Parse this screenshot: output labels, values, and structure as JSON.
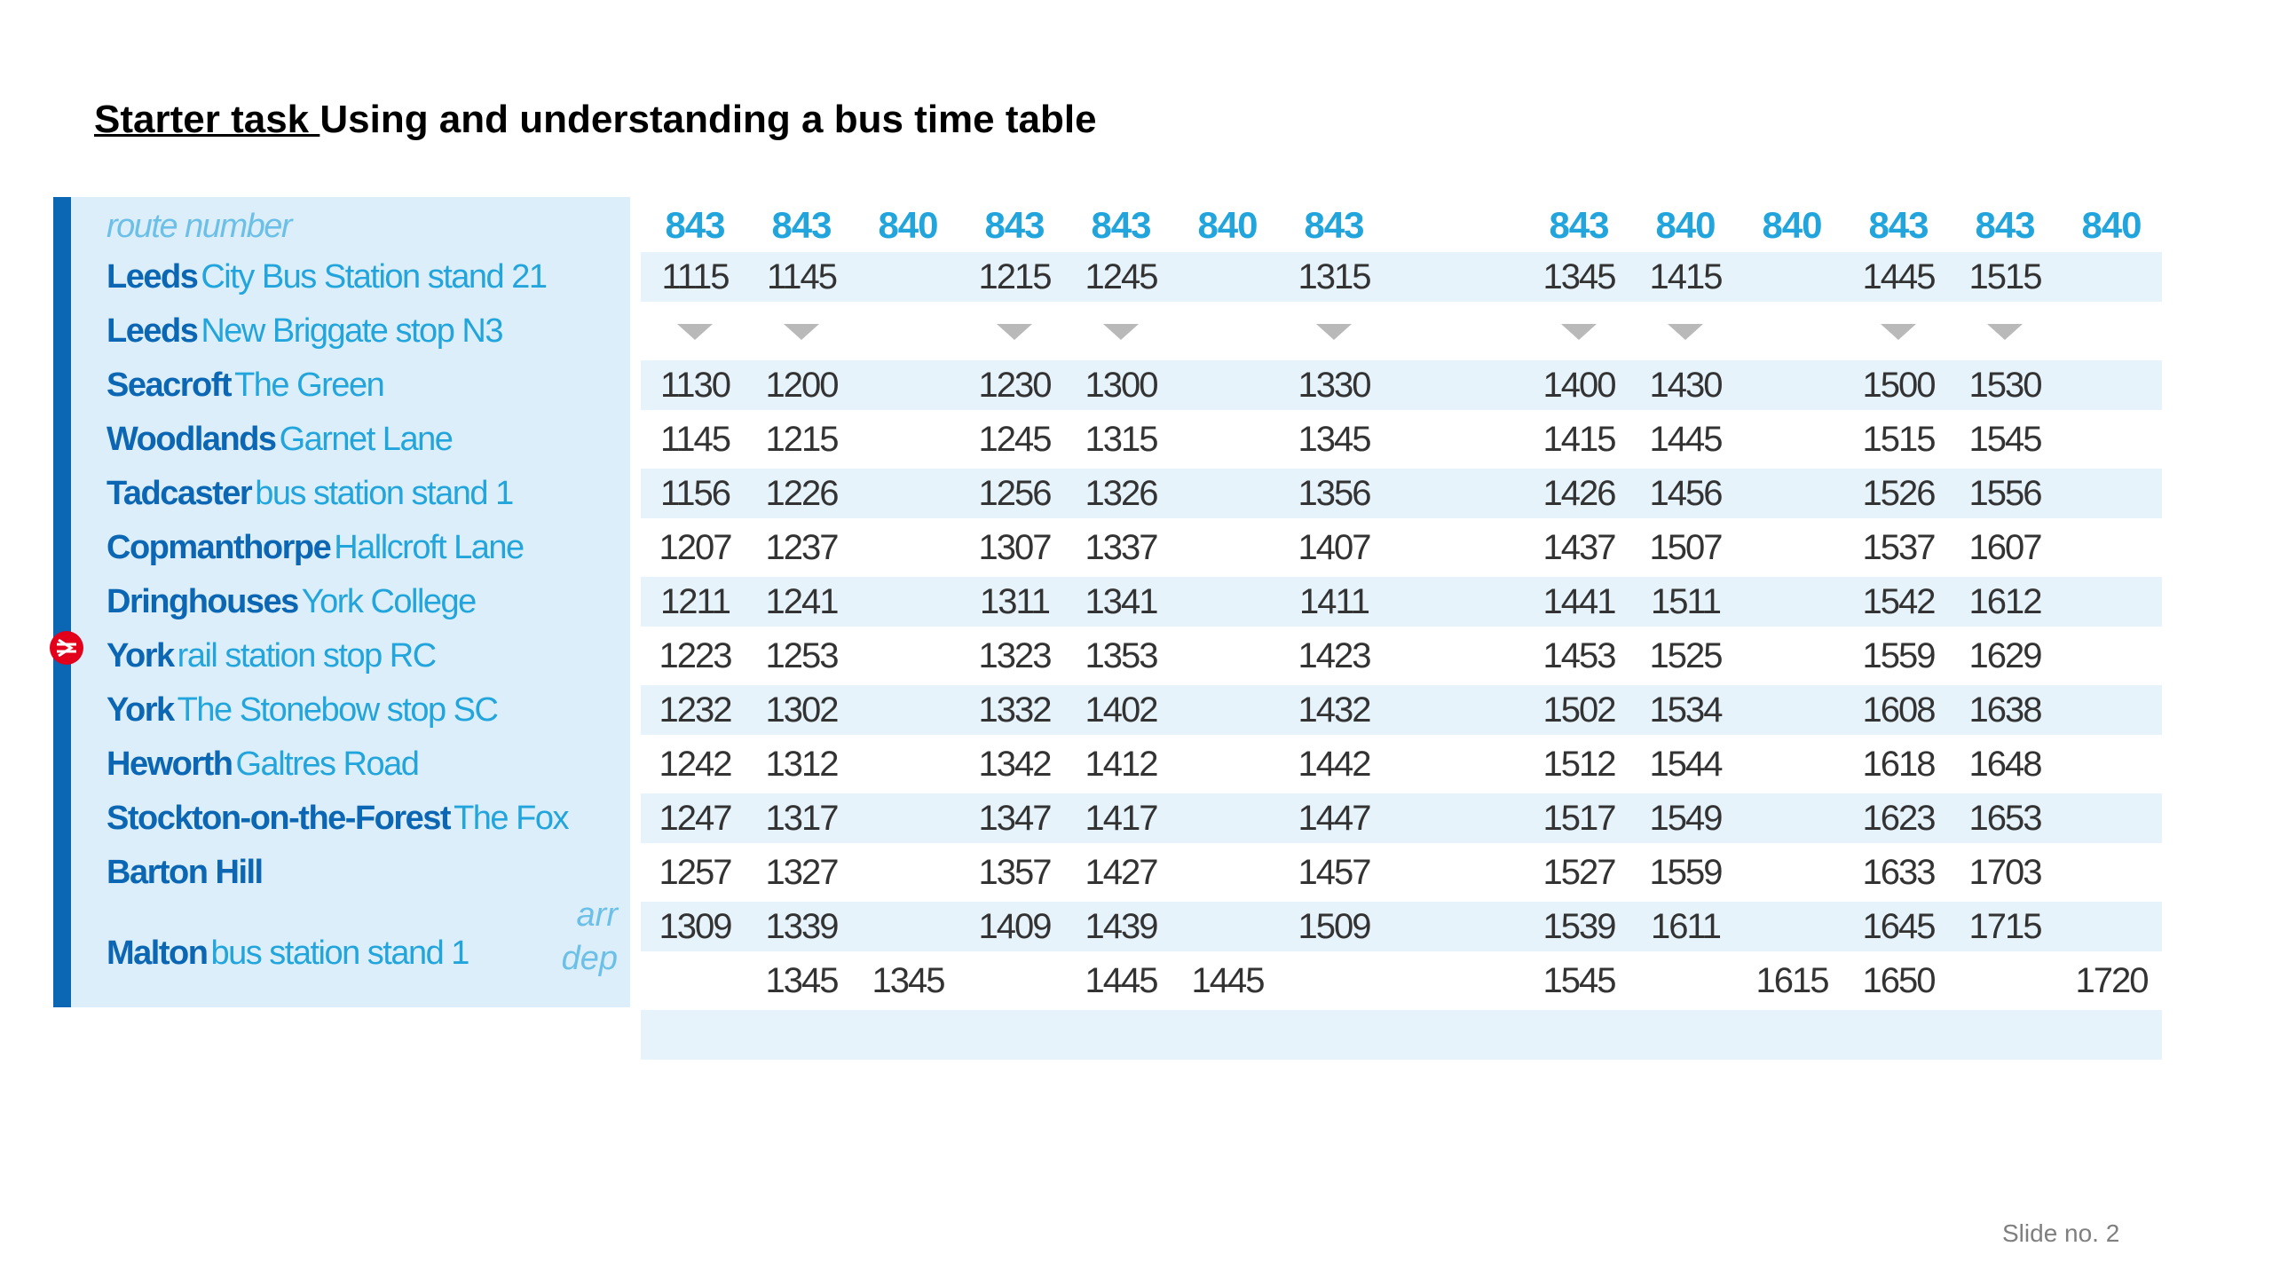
{
  "title": {
    "underlined": "Starter task ",
    "rest": "Using and understanding a bus time table"
  },
  "timetable": {
    "route_number_label": "route number",
    "routes": [
      "843",
      "843",
      "840",
      "843",
      "843",
      "840",
      "843",
      "843",
      "840",
      "840",
      "843",
      "843",
      "840"
    ],
    "stops": [
      {
        "town": "Leeds",
        "place": "City Bus Station stand 21"
      },
      {
        "town": "Leeds",
        "place": "New Briggate stop N3"
      },
      {
        "town": "Seacroft",
        "place": "The Green"
      },
      {
        "town": "Woodlands",
        "place": "Garnet Lane"
      },
      {
        "town": "Tadcaster",
        "place": "bus station stand 1"
      },
      {
        "town": "Copmanthorpe",
        "place": "Hallcroft Lane"
      },
      {
        "town": "Dringhouses",
        "place": "York College"
      },
      {
        "town": "York",
        "place": "rail station stop RC"
      },
      {
        "town": "York",
        "place": "The Stonebow stop SC"
      },
      {
        "town": "Heworth",
        "place": "Galtres Road"
      },
      {
        "town": "Stockton-on-the-Forest",
        "place": "The Fox"
      },
      {
        "town": "Barton Hill",
        "place": ""
      },
      {
        "town": "Malton",
        "place": "bus station stand 1"
      }
    ],
    "arr_label": "arr",
    "dep_label": "dep",
    "times": [
      [
        "1115",
        "1145",
        "",
        "1215",
        "1245",
        "",
        "1315",
        "1345",
        "1415",
        "",
        "1445",
        "1515",
        ""
      ],
      [
        "v",
        "v",
        "",
        "v",
        "v",
        "",
        "v",
        "v",
        "v",
        "",
        "v",
        "v",
        ""
      ],
      [
        "1130",
        "1200",
        "",
        "1230",
        "1300",
        "",
        "1330",
        "1400",
        "1430",
        "",
        "1500",
        "1530",
        ""
      ],
      [
        "1145",
        "1215",
        "",
        "1245",
        "1315",
        "",
        "1345",
        "1415",
        "1445",
        "",
        "1515",
        "1545",
        ""
      ],
      [
        "1156",
        "1226",
        "",
        "1256",
        "1326",
        "",
        "1356",
        "1426",
        "1456",
        "",
        "1526",
        "1556",
        ""
      ],
      [
        "1207",
        "1237",
        "",
        "1307",
        "1337",
        "",
        "1407",
        "1437",
        "1507",
        "",
        "1537",
        "1607",
        ""
      ],
      [
        "1211",
        "1241",
        "",
        "1311",
        "1341",
        "",
        "1411",
        "1441",
        "1511",
        "",
        "1542",
        "1612",
        ""
      ],
      [
        "1223",
        "1253",
        "",
        "1323",
        "1353",
        "",
        "1423",
        "1453",
        "1525",
        "",
        "1559",
        "1629",
        ""
      ],
      [
        "1232",
        "1302",
        "",
        "1332",
        "1402",
        "",
        "1432",
        "1502",
        "1534",
        "",
        "1608",
        "1638",
        ""
      ],
      [
        "1242",
        "1312",
        "",
        "1342",
        "1412",
        "",
        "1442",
        "1512",
        "1544",
        "",
        "1618",
        "1648",
        ""
      ],
      [
        "1247",
        "1317",
        "",
        "1347",
        "1417",
        "",
        "1447",
        "1517",
        "1549",
        "",
        "1623",
        "1653",
        ""
      ],
      [
        "1257",
        "1327",
        "",
        "1357",
        "1427",
        "",
        "1457",
        "1527",
        "1559",
        "",
        "1633",
        "1703",
        ""
      ],
      [
        "1309",
        "1339",
        "",
        "1409",
        "1439",
        "",
        "1509",
        "1539",
        "1611",
        "",
        "1645",
        "1715",
        ""
      ],
      [
        "",
        "1345",
        "1345",
        "",
        "1445",
        "1445",
        "",
        "1545",
        "",
        "1615",
        "1650",
        "",
        "1720"
      ]
    ],
    "icons": {
      "rail_station": "rail-station-icon",
      "continues": "arrow-down-icon"
    },
    "colors": {
      "route_blue": "#22a5dc",
      "town_blue": "#0b66b4",
      "panel_bg": "#dceef9",
      "band_bg": "#e6f3fb",
      "rail_red": "#e3001b"
    }
  },
  "footer": {
    "slide_number": "Slide no. 2"
  }
}
